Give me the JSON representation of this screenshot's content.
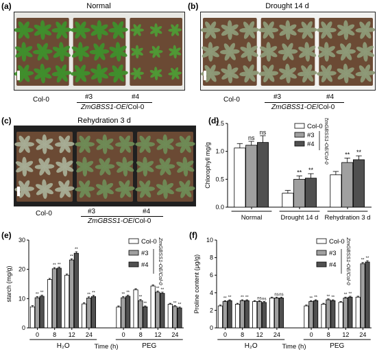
{
  "panels": {
    "a": {
      "letter": "(a)",
      "title": "Normal"
    },
    "b": {
      "letter": "(b)",
      "title": "Drought 14 d"
    },
    "c": {
      "letter": "(c)",
      "title": "Rehydration 3 d"
    },
    "d": {
      "letter": "(d)"
    },
    "e": {
      "letter": "(e)"
    },
    "f": {
      "letter": "(f)"
    }
  },
  "photo_labels": {
    "col0": "Col-0",
    "line3": "#3",
    "line4": "#4",
    "gene_italic": "ZmGBSS1-OE",
    "gene_suffix": "/Col-0"
  },
  "colors": {
    "col0": "#ffffff",
    "line3": "#a0a0a0",
    "line4": "#505050",
    "soil": "#6b4a34",
    "leaf_green": "#3f8f2c",
    "leaf_dry": "#8e9a78"
  },
  "chart_data": [
    {
      "id": "d",
      "type": "bar",
      "ylabel": "Chlorophyll mg/g",
      "ylim": [
        0,
        1.5
      ],
      "yticks": [
        "0.0",
        "0.5",
        "1.0",
        "1.5"
      ],
      "categories": [
        "Normal",
        "Drought 14 d",
        "Rehydration 3 d"
      ],
      "series": [
        {
          "name": "Col-0",
          "values": [
            1.06,
            0.25,
            0.58
          ],
          "errors": [
            0.08,
            0.05,
            0.06
          ]
        },
        {
          "name": "#3",
          "values": [
            1.11,
            0.5,
            0.8
          ],
          "errors": [
            0.07,
            0.06,
            0.08
          ]
        },
        {
          "name": "#4",
          "values": [
            1.16,
            0.52,
            0.85
          ],
          "errors": [
            0.12,
            0.08,
            0.07
          ]
        }
      ],
      "annotations": [
        [
          "",
          "",
          ""
        ],
        [
          "ns",
          "**",
          "**"
        ],
        [
          "ns",
          "**",
          "**"
        ]
      ],
      "legend_side_label": "ZmGBSS1-OE/Col-0",
      "legend": "top-right"
    },
    {
      "id": "e",
      "type": "bar",
      "ylabel": "starch (mg/g)",
      "xlabel": "Time (h)",
      "ylim": [
        0,
        30
      ],
      "yticks": [
        "0",
        "10",
        "20",
        "30"
      ],
      "categories": [
        "0",
        "8",
        "12",
        "24",
        "0",
        "8",
        "12",
        "24"
      ],
      "groups": [
        {
          "label": "H₂O",
          "span": [
            0,
            3
          ]
        },
        {
          "label": "PEG",
          "span": [
            4,
            7
          ]
        }
      ],
      "series": [
        {
          "name": "Col-0",
          "values": [
            7.2,
            16.5,
            18.0,
            8.2,
            7.1,
            13.0,
            14.3,
            8.1
          ],
          "errors": [
            0.4,
            0.4,
            0.4,
            0.4,
            0.4,
            0.4,
            0.4,
            0.3
          ]
        },
        {
          "name": "#3",
          "values": [
            10.3,
            20.2,
            23.2,
            10.2,
            10.3,
            9.3,
            12.2,
            7.3
          ],
          "errors": [
            0.4,
            0.4,
            0.4,
            0.4,
            0.4,
            0.4,
            0.4,
            0.3
          ]
        },
        {
          "name": "#4",
          "values": [
            10.8,
            20.4,
            25.5,
            10.7,
            10.8,
            7.2,
            11.8,
            6.8
          ],
          "errors": [
            0.4,
            0.4,
            0.5,
            0.4,
            0.4,
            0.3,
            0.4,
            0.3
          ]
        }
      ],
      "annotations": [
        [
          "",
          "",
          "",
          "",
          "",
          "",
          "",
          ""
        ],
        [
          "**",
          "**",
          "**",
          "**",
          "**",
          "**",
          "**",
          "**"
        ],
        [
          "**",
          "**",
          "**",
          "**",
          "**",
          "**",
          "**",
          "**"
        ]
      ],
      "legend_side_label": "ZmGBSS1-OE/Col-0",
      "legend": "top-right"
    },
    {
      "id": "f",
      "type": "bar",
      "ylabel": "Proline content (μg/g)",
      "xlabel": "Time (h)",
      "ylim": [
        0,
        10
      ],
      "yticks": [
        "0",
        "2",
        "4",
        "6",
        "8",
        "10"
      ],
      "categories": [
        "0",
        "8",
        "12",
        "24",
        "0",
        "8",
        "12",
        "24"
      ],
      "groups": [
        {
          "label": "H₂O",
          "span": [
            0,
            3
          ]
        },
        {
          "label": "PEG",
          "span": [
            4,
            7
          ]
        }
      ],
      "series": [
        {
          "name": "Col-0",
          "values": [
            2.5,
            2.7,
            3.0,
            3.4,
            2.5,
            2.7,
            2.9,
            3.5
          ],
          "errors": [
            0.1,
            0.1,
            0.1,
            0.1,
            0.1,
            0.1,
            0.1,
            0.1
          ]
        },
        {
          "name": "#3",
          "values": [
            3.0,
            3.1,
            3.0,
            3.4,
            3.0,
            3.2,
            3.4,
            7.3
          ],
          "errors": [
            0.1,
            0.1,
            0.1,
            0.1,
            0.1,
            0.1,
            0.1,
            0.15
          ]
        },
        {
          "name": "#4",
          "values": [
            3.1,
            3.1,
            2.9,
            3.4,
            3.1,
            3.1,
            3.5,
            7.5
          ],
          "errors": [
            0.1,
            0.1,
            0.1,
            0.1,
            0.1,
            0.1,
            0.1,
            0.15
          ]
        }
      ],
      "annotations": [
        [
          "",
          "",
          "",
          "",
          "",
          "",
          "",
          ""
        ],
        [
          "**",
          "**",
          "ns",
          "ns",
          "**",
          "**",
          "**",
          "**"
        ],
        [
          "**",
          "**",
          "ns",
          "ns",
          "**",
          "**",
          "**",
          "**"
        ]
      ],
      "legend_side_label": "ZmGBSS1-OE/Col-0",
      "legend": "top-right"
    }
  ]
}
